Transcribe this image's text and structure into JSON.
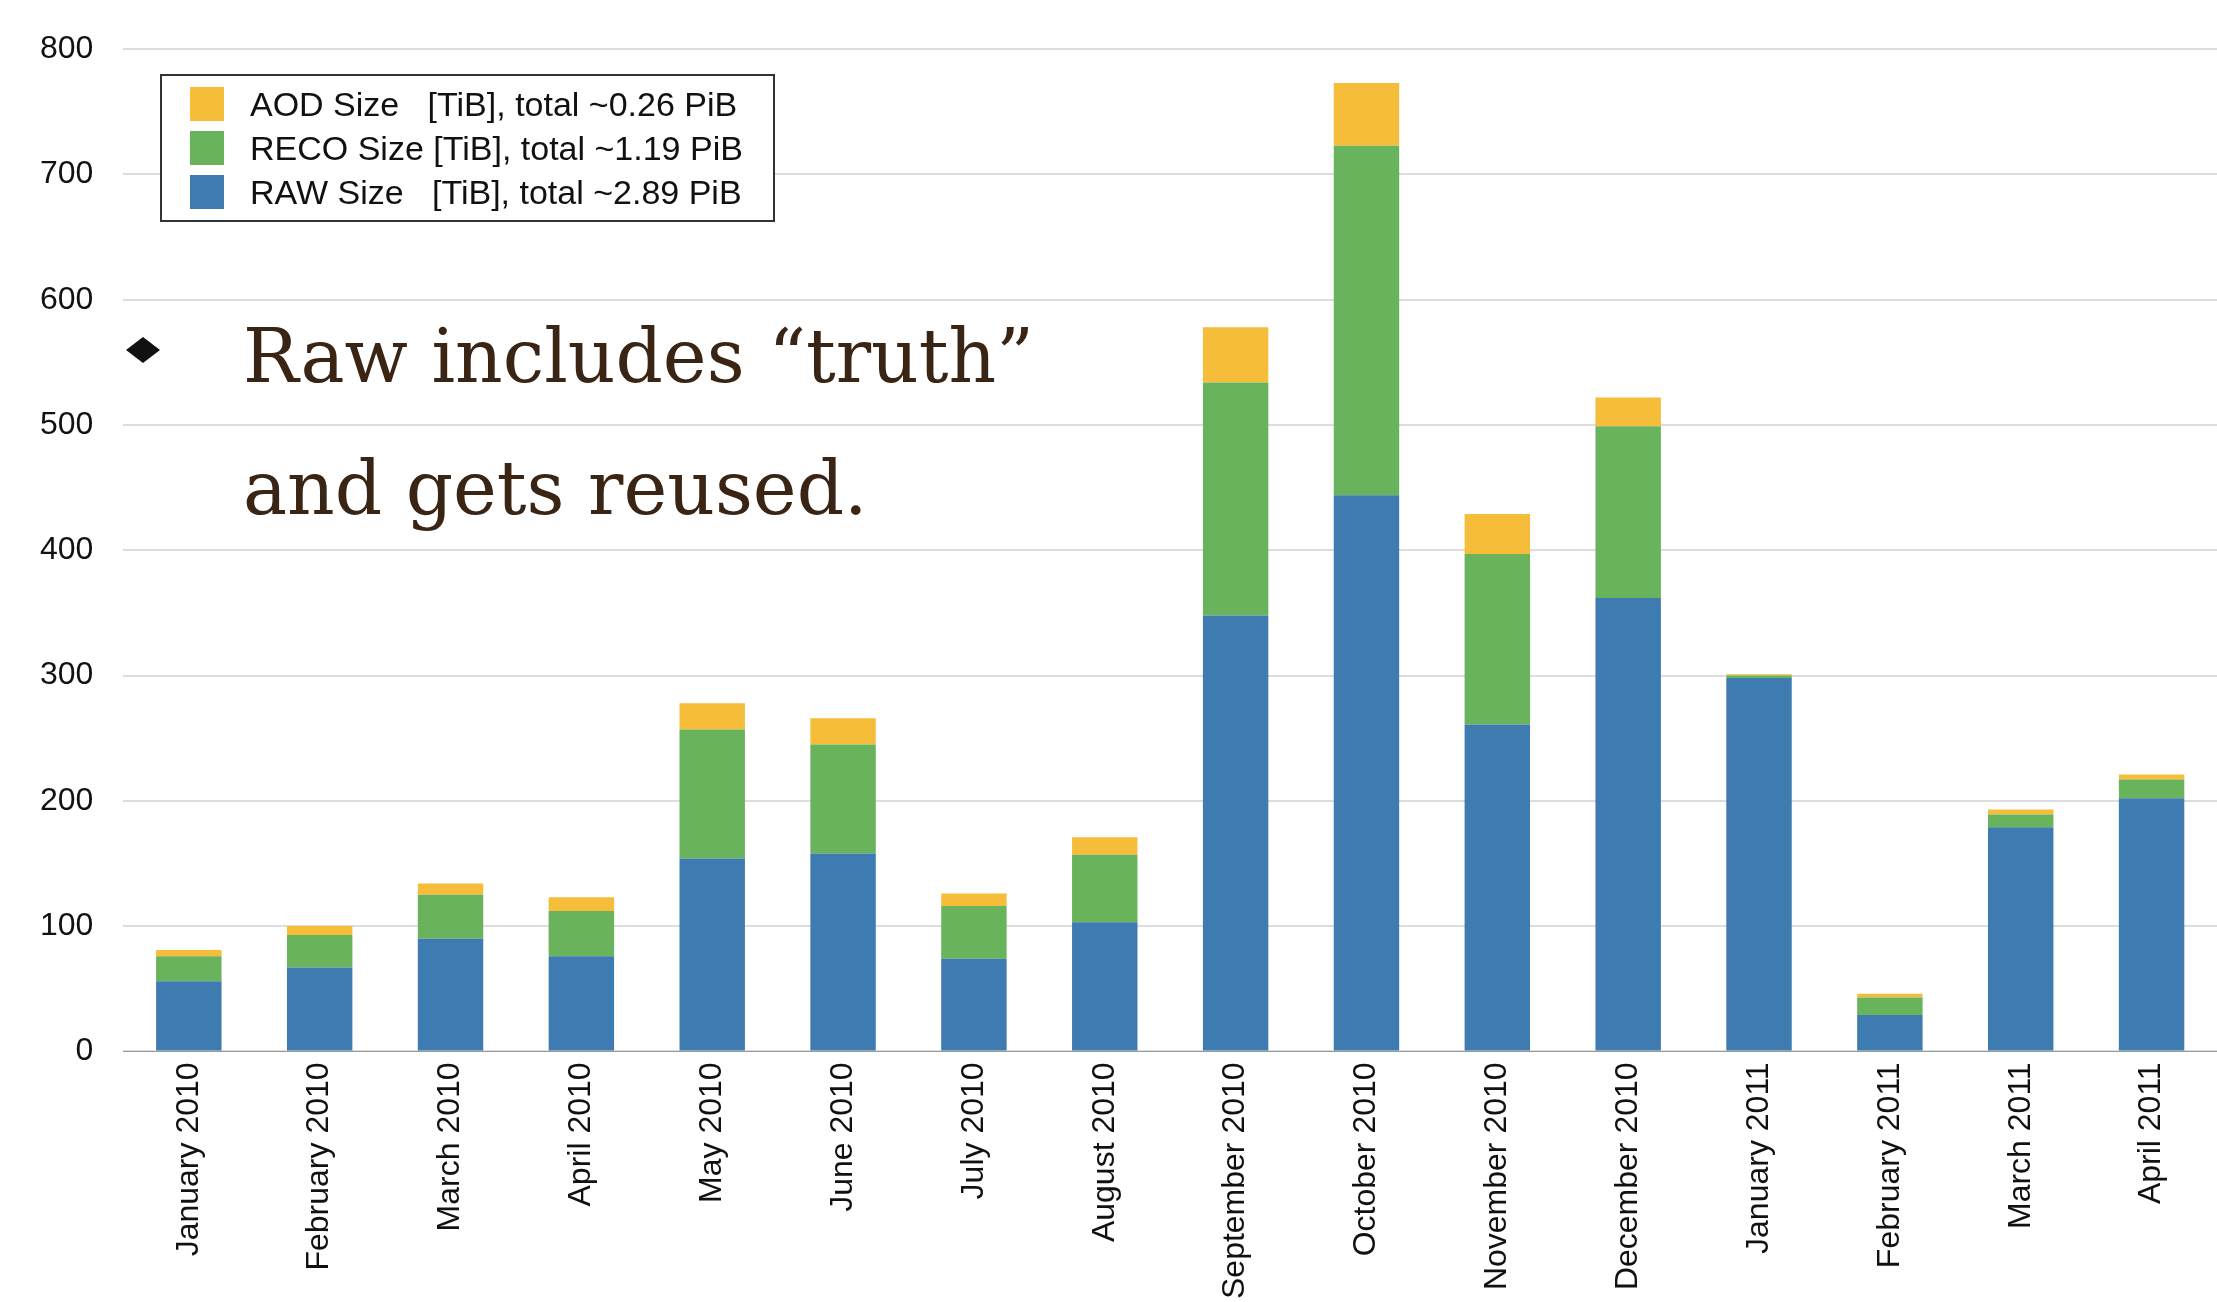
{
  "chart_data": {
    "type": "bar",
    "stacked": true,
    "categories": [
      "January 2010",
      "February 2010",
      "March 2010",
      "April 2010",
      "May 2010",
      "June 2010",
      "July 2010",
      "August 2010",
      "September 2010",
      "October 2010",
      "November 2010",
      "December 2010",
      "January 2011",
      "February 2011",
      "March 2011",
      "April 2011"
    ],
    "series": [
      {
        "name": "RAW Size   [TiB], total ~2.89 PiB",
        "color": "#3d7bb0",
        "values": [
          56,
          67,
          90,
          76,
          154,
          158,
          74,
          103,
          348,
          444,
          261,
          362,
          298,
          29,
          179,
          202
        ]
      },
      {
        "name": "RECO Size [TiB], total ~1.19 PiB",
        "color": "#68b35b",
        "values": [
          20,
          26,
          35,
          36,
          103,
          87,
          42,
          54,
          186,
          279,
          136,
          137,
          2,
          14,
          10,
          15
        ]
      },
      {
        "name": "AOD Size   [TiB], total ~0.26 PiB",
        "color": "#f5bd3a",
        "values": [
          5,
          7,
          9,
          11,
          21,
          21,
          10,
          14,
          44,
          50,
          32,
          23,
          1,
          3,
          4,
          4
        ]
      }
    ],
    "ylim": [
      0,
      800
    ],
    "yticks": [
      0,
      100,
      200,
      300,
      400,
      500,
      600,
      700,
      800
    ],
    "grid": "y",
    "legend": "top left",
    "annotations": [
      "Raw includes “truth” and gets reused."
    ]
  }
}
